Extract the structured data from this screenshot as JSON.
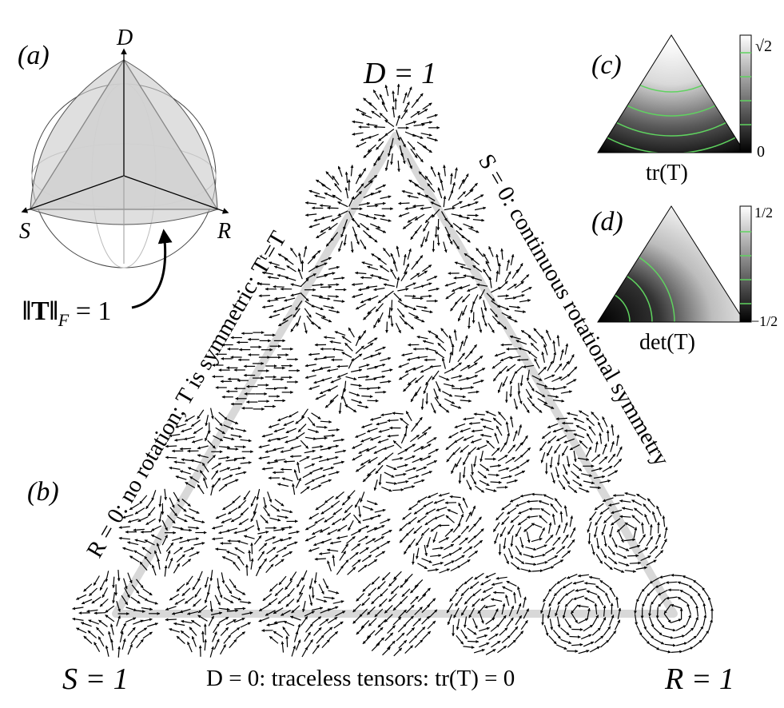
{
  "panels": {
    "a": {
      "label": "(a)",
      "vertex_top": "D",
      "vertex_left": "S",
      "vertex_right": "R",
      "norm_label": "‖T‖",
      "norm_sub": "F",
      "norm_eq": " = 1"
    },
    "b": {
      "label": "(b)"
    },
    "c": {
      "label": "(c)",
      "caption": "tr(T)",
      "scale_max": "√2",
      "scale_min": "0"
    },
    "d": {
      "label": "(d)",
      "caption": "det(T)",
      "scale_max": "1/2",
      "scale_min": "−1/2"
    }
  },
  "corners": {
    "top": "D = 1",
    "left": "S = 1",
    "right": "R = 1"
  },
  "edges": {
    "bottom": "D = 0: traceless tensors: tr(T) = 0",
    "left": "R = 0: no rotation; T is symmetric: Tᵗ=T",
    "right": "S = 0: continuous rotational symmetry"
  },
  "colors": {
    "glyph": "#000000",
    "guide": "#d8d8d8",
    "contour": "#5fd35f",
    "face": "#dcdcdc"
  }
}
